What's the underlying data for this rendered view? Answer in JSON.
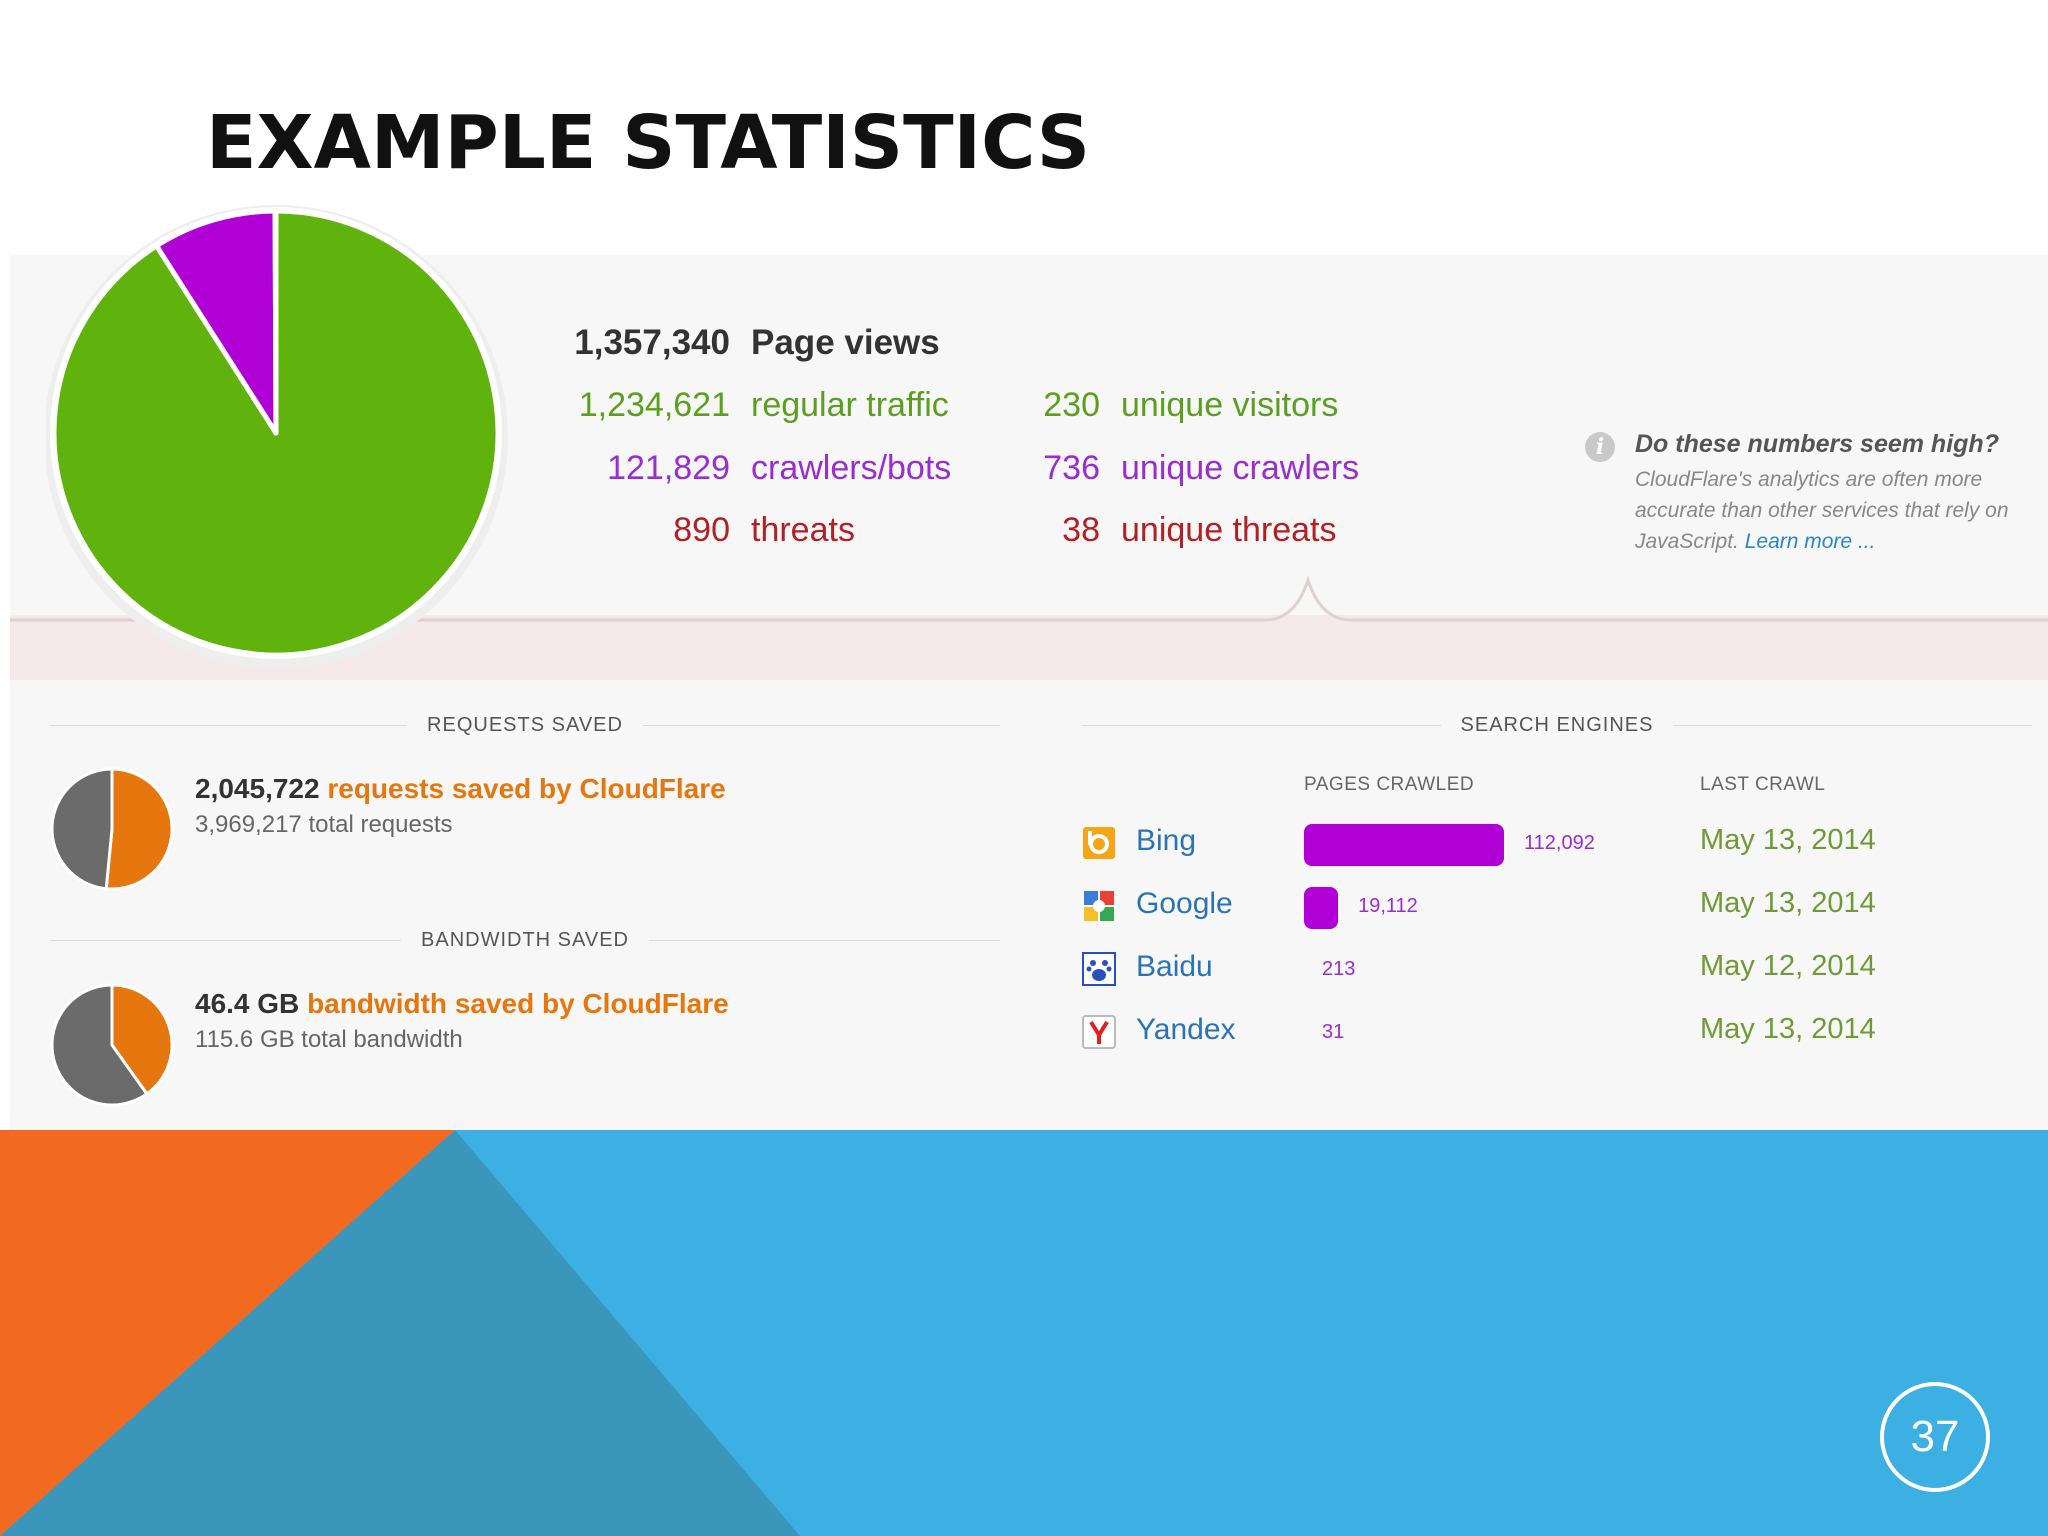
{
  "slide": {
    "title": "EXAMPLE STATISTICS",
    "page_number": "37"
  },
  "overview": {
    "page_views": {
      "value": "1,357,340",
      "label": "Page views"
    },
    "regular_traffic": {
      "value": "1,234,621",
      "label": "regular traffic"
    },
    "crawlers_bots": {
      "value": "121,829",
      "label": "crawlers/bots"
    },
    "threats": {
      "value": "890",
      "label": "threats"
    },
    "unique_visitors": {
      "value": "230",
      "label": "unique visitors"
    },
    "unique_crawlers": {
      "value": "736",
      "label": "unique crawlers"
    },
    "unique_threats": {
      "value": "38",
      "label": "unique threats"
    }
  },
  "info_note": {
    "heading": "Do these numbers seem high?",
    "body": "CloudFlare's analytics are often more accurate than other services that rely on JavaScript.",
    "link": "Learn more ..."
  },
  "requests_saved": {
    "heading": "REQUESTS SAVED",
    "saved_value": "2,045,722",
    "saved_label": "requests saved by CloudFlare",
    "total": "3,969,217 total requests"
  },
  "bandwidth_saved": {
    "heading": "BANDWIDTH SAVED",
    "saved_value": "46.4 GB",
    "saved_label": "bandwidth saved by CloudFlare",
    "total": "115.6 GB total bandwidth"
  },
  "search_engines": {
    "heading": "SEARCH ENGINES",
    "col_pages": "PAGES CRAWLED",
    "col_last": "LAST CRAWL",
    "rows": [
      {
        "name": "Bing",
        "pages": "112,092",
        "last": "May 13, 2014",
        "icon": "bing-icon"
      },
      {
        "name": "Google",
        "pages": "19,112",
        "last": "May 13, 2014",
        "icon": "google-icon"
      },
      {
        "name": "Baidu",
        "pages": "213",
        "last": "May 12, 2014",
        "icon": "baidu-icon"
      },
      {
        "name": "Yandex",
        "pages": "31",
        "last": "May 13, 2014",
        "icon": "yandex-icon"
      }
    ]
  },
  "colors": {
    "regular": "#5fb30c",
    "crawlers": "#b100d6",
    "threats": "#b21f24",
    "saved": "#e6770e",
    "unsaved": "#6b6b6b",
    "deco_orange": "#f26a1f",
    "deco_blue": "#3cb0e2",
    "deco_dark_blue": "#3a96bb"
  },
  "chart_data": [
    {
      "type": "pie",
      "labels": [
        "regular traffic",
        "crawlers/bots",
        "threats"
      ],
      "values": [
        1234621,
        121829,
        890
      ]
    },
    {
      "type": "pie",
      "labels": [
        "requests saved by CloudFlare",
        "total requests"
      ],
      "values": [
        2045722,
        3969217
      ]
    },
    {
      "type": "pie",
      "labels": [
        "bandwidth saved by CloudFlare",
        "total bandwidth"
      ],
      "values": [
        46.4,
        115.6
      ]
    },
    {
      "type": "bar",
      "categories": [
        "Bing",
        "Google",
        "Baidu",
        "Yandex"
      ],
      "values": [
        112092,
        19112,
        213,
        31
      ]
    }
  ]
}
